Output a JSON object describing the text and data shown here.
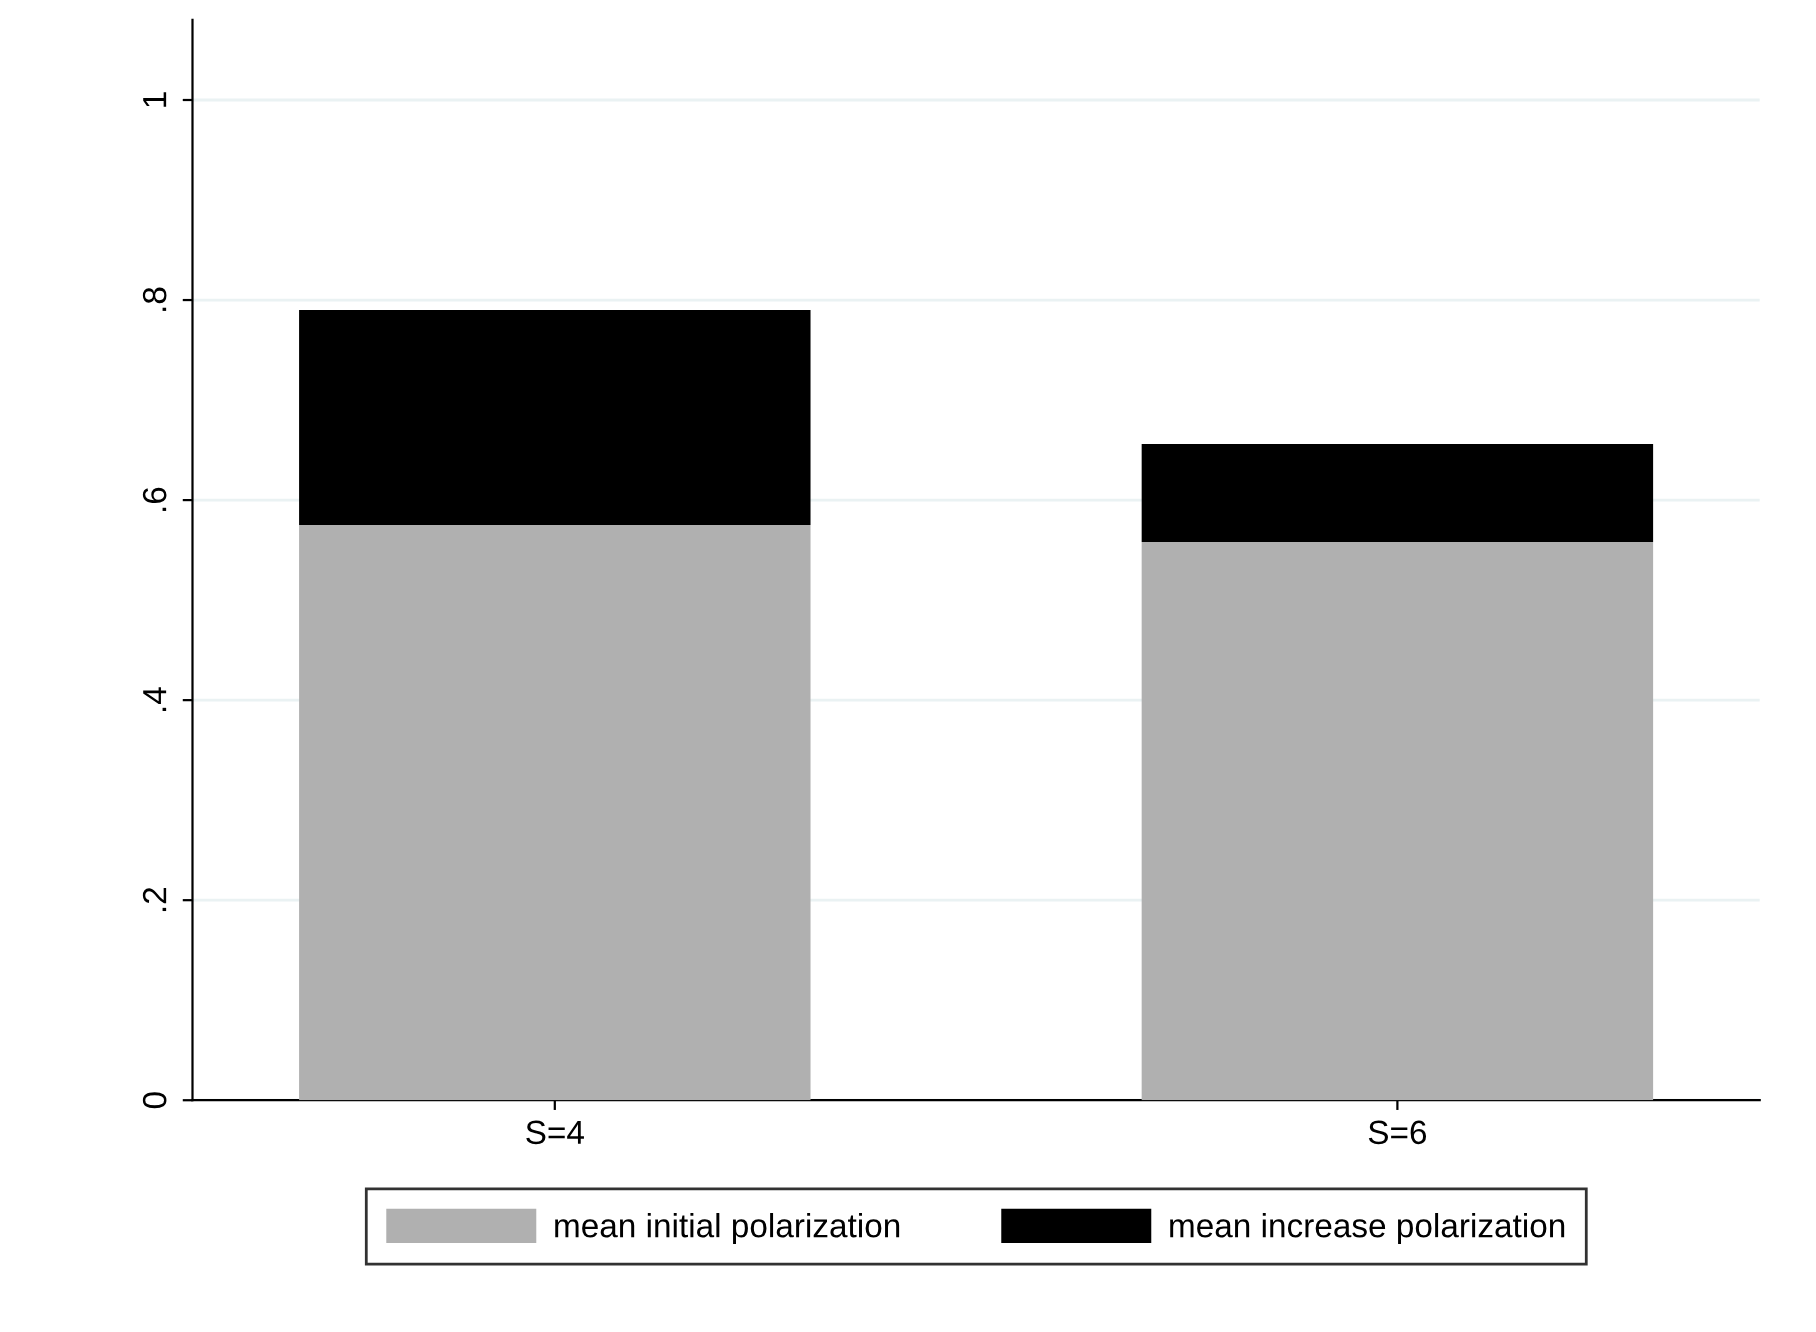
{
  "chart_data": {
    "type": "bar",
    "stacked": true,
    "categories": [
      "S=4",
      "S=6"
    ],
    "series": [
      {
        "name": "mean initial polarization",
        "color": "#b0b0b0",
        "values": [
          0.575,
          0.558
        ]
      },
      {
        "name": "mean increase polarization",
        "color": "#000000",
        "values": [
          0.215,
          0.098
        ]
      }
    ],
    "ylim": [
      0,
      1.08
    ],
    "yticks": [
      {
        "value": 0,
        "label": "0"
      },
      {
        "value": 0.2,
        "label": ".2"
      },
      {
        "value": 0.4,
        "label": ".4"
      },
      {
        "value": 0.6,
        "label": ".6"
      },
      {
        "value": 0.8,
        "label": ".8"
      },
      {
        "value": 1,
        "label": "1"
      }
    ],
    "grid": "y",
    "legend": "bottom"
  }
}
